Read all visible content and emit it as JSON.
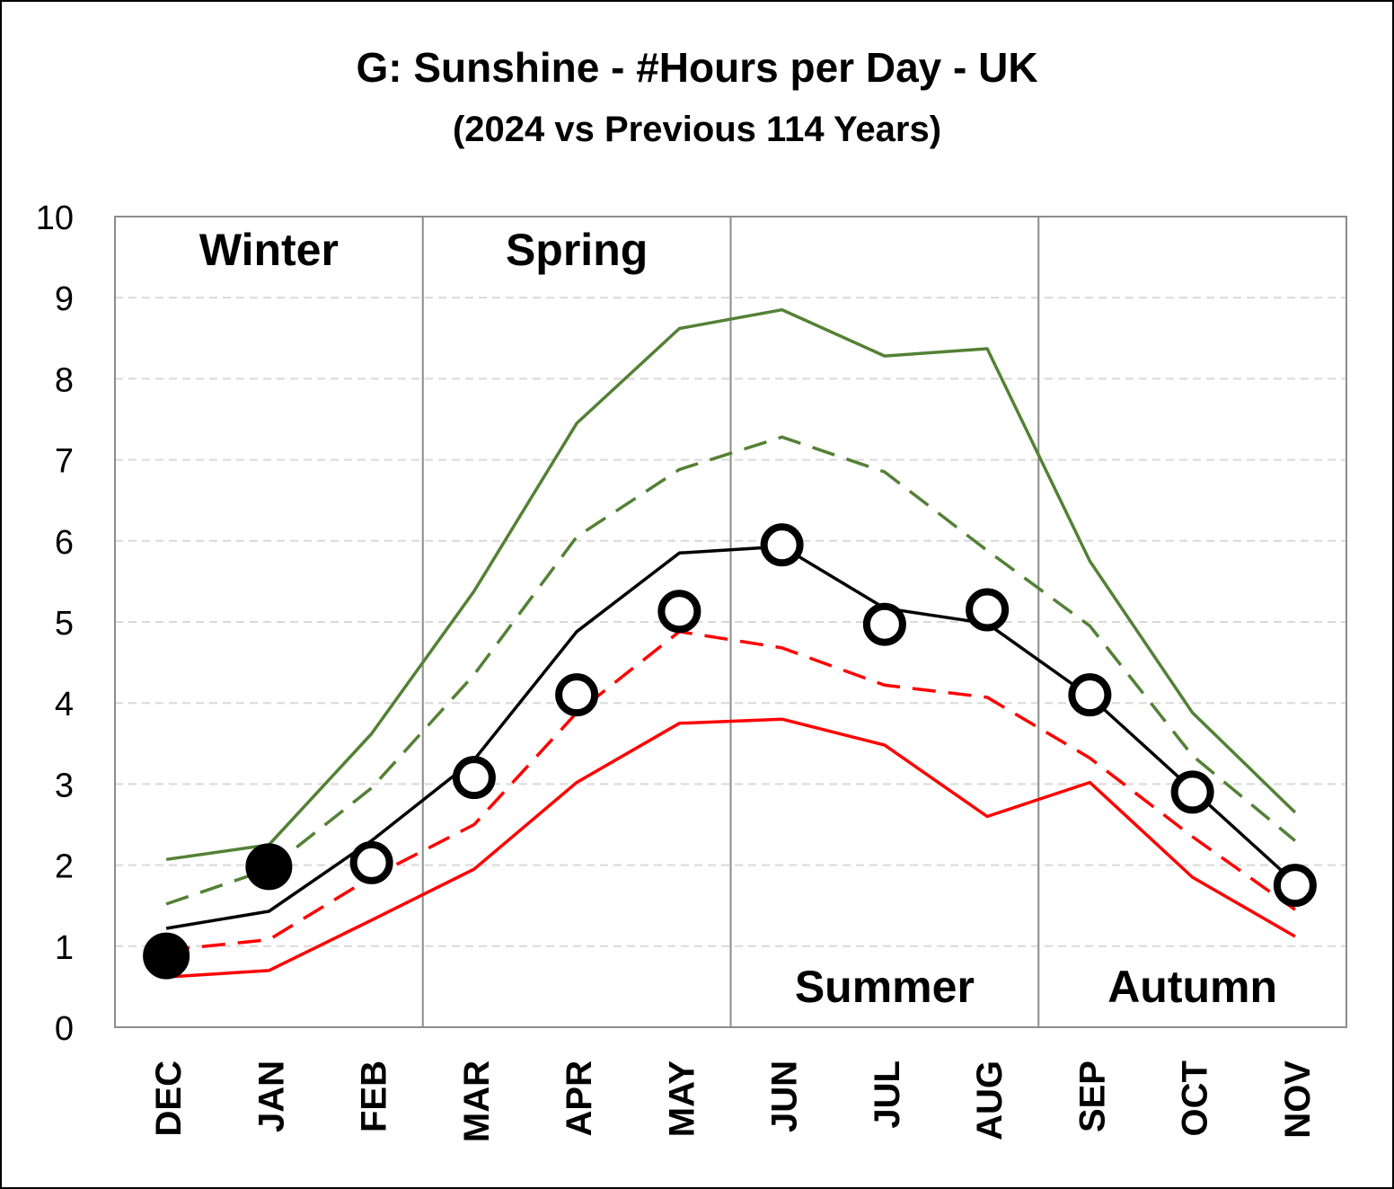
{
  "chart_data": {
    "type": "line",
    "title": "G: Sunshine - #Hours per Day - UK",
    "subtitle": "(2024 vs Previous 114 Years)",
    "categories": [
      "DEC",
      "JAN",
      "FEB",
      "MAR",
      "APR",
      "MAY",
      "JUN",
      "JUL",
      "AUG",
      "SEP",
      "OCT",
      "NOV"
    ],
    "ylim": [
      0,
      10
    ],
    "yticks": [
      "0",
      "1",
      "2",
      "3",
      "4",
      "5",
      "6",
      "7",
      "8",
      "9",
      "10"
    ],
    "grid": "horizontal dashed",
    "seasons": [
      {
        "label": "Winter",
        "start": 0,
        "end": 3,
        "label_position": "top"
      },
      {
        "label": "Spring",
        "start": 3,
        "end": 6,
        "label_position": "top"
      },
      {
        "label": "Summer",
        "start": 6,
        "end": 9,
        "label_position": "bottom"
      },
      {
        "label": "Autumn",
        "start": 9,
        "end": 12,
        "label_position": "bottom"
      }
    ],
    "series": [
      {
        "style": "solid",
        "color": "#538135",
        "values": [
          2.07,
          2.25,
          3.62,
          5.38,
          7.45,
          8.62,
          8.85,
          8.28,
          8.37,
          5.75,
          3.88,
          2.65
        ]
      },
      {
        "style": "dashed",
        "color": "#538135",
        "values": [
          1.52,
          1.95,
          2.95,
          4.35,
          6.05,
          6.88,
          7.28,
          6.85,
          5.88,
          4.95,
          3.35,
          2.3
        ]
      },
      {
        "style": "solid",
        "color": "#000000",
        "values": [
          1.22,
          1.43,
          2.3,
          3.3,
          4.88,
          5.85,
          5.93,
          5.17,
          4.98,
          4.08,
          2.93,
          1.78
        ]
      },
      {
        "style": "dashed",
        "color": "#ff0000",
        "values": [
          0.95,
          1.08,
          1.85,
          2.5,
          3.88,
          4.88,
          4.68,
          4.22,
          4.07,
          3.32,
          2.35,
          1.45
        ]
      },
      {
        "style": "solid",
        "color": "#ff0000",
        "values": [
          0.62,
          0.7,
          1.32,
          1.95,
          3.02,
          3.75,
          3.8,
          3.48,
          2.6,
          3.02,
          1.85,
          1.12
        ]
      },
      {
        "style": "markers",
        "color": "#000000",
        "values": [
          0.88,
          1.98,
          2.03,
          3.08,
          4.1,
          5.13,
          5.95,
          4.97,
          5.15,
          4.1,
          2.9,
          1.75
        ],
        "filled": [
          true,
          true,
          false,
          false,
          false,
          false,
          false,
          false,
          false,
          false,
          false,
          false
        ]
      }
    ]
  }
}
